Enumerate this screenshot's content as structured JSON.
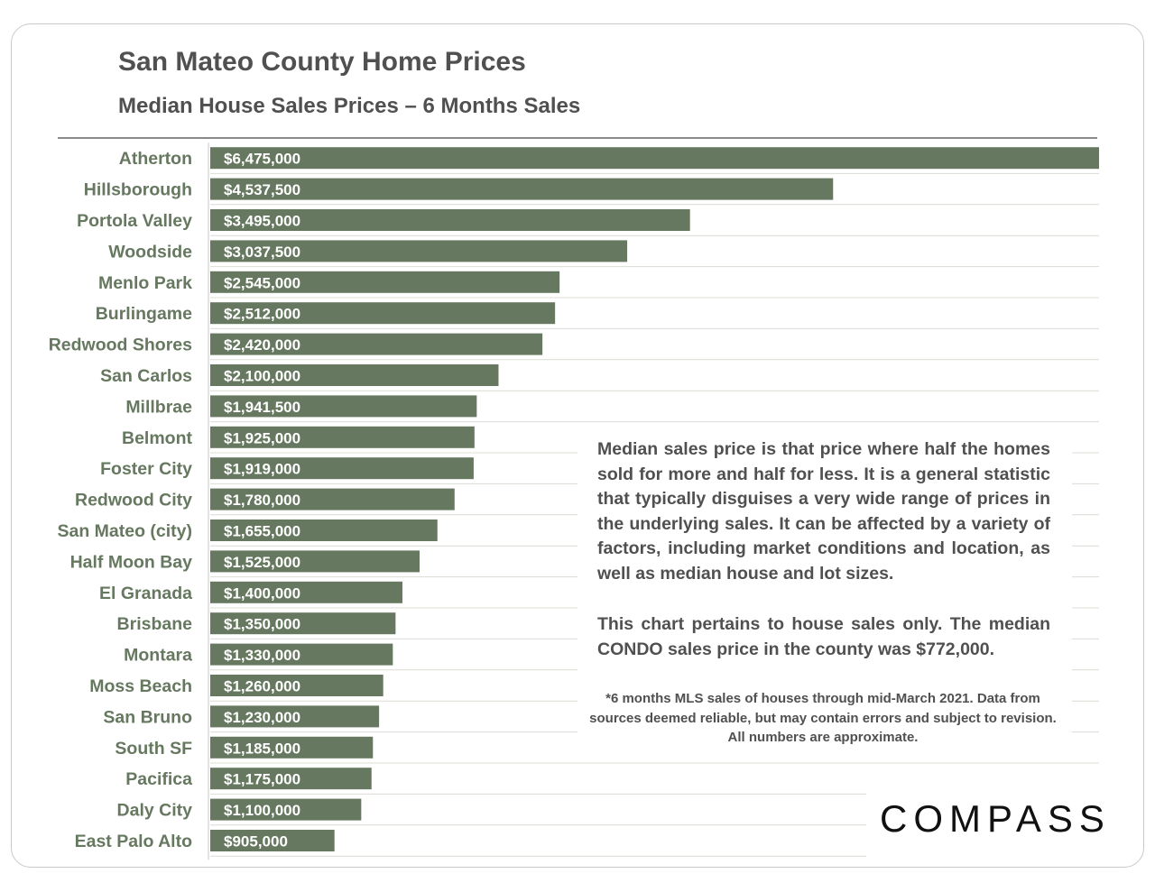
{
  "chart_data": {
    "type": "bar",
    "orientation": "horizontal",
    "title": "San Mateo County Home Prices",
    "subtitle": "Median House Sales Prices – 6 Months Sales",
    "categories": [
      "Atherton",
      "Hillsborough",
      "Portola Valley",
      "Woodside",
      "Menlo Park",
      "Burlingame",
      "Redwood Shores",
      "San Carlos",
      "Millbrae",
      "Belmont",
      "Foster City",
      "Redwood City",
      "San Mateo (city)",
      "Half Moon Bay",
      "El Granada",
      "Brisbane",
      "Montara",
      "Moss Beach",
      "San Bruno",
      "South SF",
      "Pacifica",
      "Daly City",
      "East Palo Alto"
    ],
    "values": [
      6475000,
      4537500,
      3495000,
      3037500,
      2545000,
      2512000,
      2420000,
      2100000,
      1941500,
      1925000,
      1919000,
      1780000,
      1655000,
      1525000,
      1400000,
      1350000,
      1330000,
      1260000,
      1230000,
      1185000,
      1175000,
      1100000,
      905000
    ],
    "labels": [
      "$6,475,000",
      "$4,537,500",
      "$3,495,000",
      "$3,037,500",
      "$2,545,000",
      "$2,512,000",
      "$2,420,000",
      "$2,100,000",
      "$1,941,500",
      "$1,925,000",
      "$1,919,000",
      "$1,780,000",
      "$1,655,000",
      "$1,525,000",
      "$1,400,000",
      "$1,350,000",
      "$1,330,000",
      "$1,260,000",
      "$1,230,000",
      "$1,185,000",
      "$1,175,000",
      "$1,100,000",
      "$905,000"
    ],
    "xlim": [
      0,
      6475000
    ],
    "xlabel": "",
    "ylabel": ""
  },
  "colors": {
    "bar": "#66785f",
    "category_text": "#66785f",
    "bar_text": "#ffffff",
    "grid": "#dcdcd4",
    "title_text": "#505050"
  },
  "notes": {
    "paragraph1": "Median sales price is that price where half the homes sold for more and half for less. It is a general statistic that typically disguises a very wide range of prices in the underlying sales. It can be affected by a variety of factors, including market conditions and location, as well as median house and lot sizes.",
    "paragraph2": "This chart pertains to house sales only. The median CONDO sales price in the county was $772,000.",
    "footnote": "*6 months MLS sales of houses through mid-March 2021. Data from sources deemed reliable, but may contain errors and subject to revision. All numbers are approximate."
  },
  "brand": {
    "logo_text": "COMPASS"
  }
}
